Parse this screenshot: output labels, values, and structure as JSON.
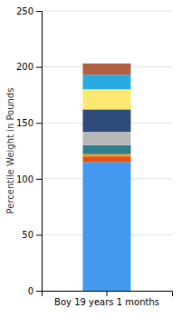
{
  "chart_data": {
    "type": "bar",
    "stacked": true,
    "categories": [
      "Boy 19 years 1 months"
    ],
    "ylabel": "Percentile Weight in Pounds",
    "series": [
      {
        "color": "#4499ee",
        "values": [
          115
        ]
      },
      {
        "color": "#e85010",
        "values": [
          5
        ]
      },
      {
        "color": "#f0a020",
        "values": [
          2
        ]
      },
      {
        "color": "#2e7f8c",
        "values": [
          8
        ]
      },
      {
        "color": "#b8b8b8",
        "values": [
          12
        ]
      },
      {
        "color": "#2d4a7a",
        "values": [
          20
        ]
      },
      {
        "color": "#fce870",
        "values": [
          18
        ]
      },
      {
        "color": "#29aae1",
        "values": [
          13
        ]
      },
      {
        "color": "#b06040",
        "values": [
          10
        ]
      }
    ],
    "ylim": [
      0,
      250
    ],
    "yticks": [
      0,
      50,
      100,
      150,
      200,
      250
    ],
    "grid": true
  }
}
